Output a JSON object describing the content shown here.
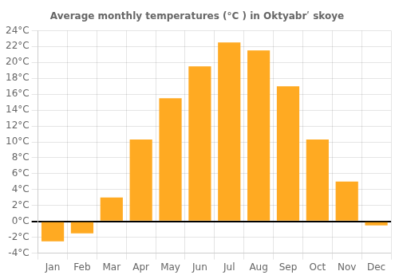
{
  "chart_data": {
    "type": "bar",
    "title": "Average monthly temperatures (°C ) in Oktyabrʹ skoye",
    "categories": [
      "Jan",
      "Feb",
      "Mar",
      "Apr",
      "May",
      "Jun",
      "Jul",
      "Aug",
      "Sep",
      "Oct",
      "Nov",
      "Dec"
    ],
    "values": [
      -2.5,
      -1.5,
      3.0,
      10.3,
      15.5,
      19.5,
      22.5,
      21.5,
      17.0,
      10.3,
      5.0,
      -0.5
    ],
    "color": "#FFAA22",
    "ylim": [
      -4,
      24
    ],
    "yticks": [
      {
        "value": -4,
        "label": "-4°C"
      },
      {
        "value": -2,
        "label": "-2°C"
      },
      {
        "value": 0,
        "label": "0°C"
      },
      {
        "value": 2,
        "label": "2°C"
      },
      {
        "value": 4,
        "label": "4°C"
      },
      {
        "value": 6,
        "label": "6°C"
      },
      {
        "value": 8,
        "label": "8°C"
      },
      {
        "value": 10,
        "label": "10°C"
      },
      {
        "value": 12,
        "label": "12°C"
      },
      {
        "value": 14,
        "label": "14°C"
      },
      {
        "value": 16,
        "label": "16°C"
      },
      {
        "value": 18,
        "label": "18°C"
      },
      {
        "value": 20,
        "label": "20°C"
      },
      {
        "value": 22,
        "label": "22°C"
      },
      {
        "value": 24,
        "label": "24°C"
      }
    ],
    "grid": true
  }
}
